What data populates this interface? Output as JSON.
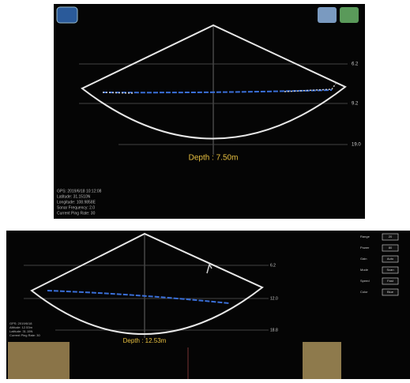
{
  "top_panel": {
    "depth": "Depth : 7.50m",
    "scale": [
      "6.2",
      "9.2",
      "19.0"
    ],
    "info": [
      "GPS: 2019/6/18 10:12:08",
      "Latitude: 31.1510N",
      "Longitude: 108.9858E",
      "Sonar Frequency: 2.0",
      "Current Ping Rate: 30"
    ]
  },
  "bottom_panel": {
    "depth": "Depth : 12.53m",
    "scale": [
      "6.2",
      "12.0",
      "18.8"
    ],
    "info": [
      "GPS: 2019/6/18",
      "Altitude: 12.53m",
      "Latitude: 31.15N",
      "Current Ping Rate: 30"
    ],
    "controls": [
      {
        "label": "Range",
        "value": "20"
      },
      {
        "label": "Power",
        "value": "80"
      },
      {
        "label": "Gain",
        "value": "Auto"
      },
      {
        "label": "Mode",
        "value": "Scan"
      },
      {
        "label": "Speed",
        "value": "Fast"
      },
      {
        "label": "Color",
        "value": "Blue"
      }
    ]
  }
}
